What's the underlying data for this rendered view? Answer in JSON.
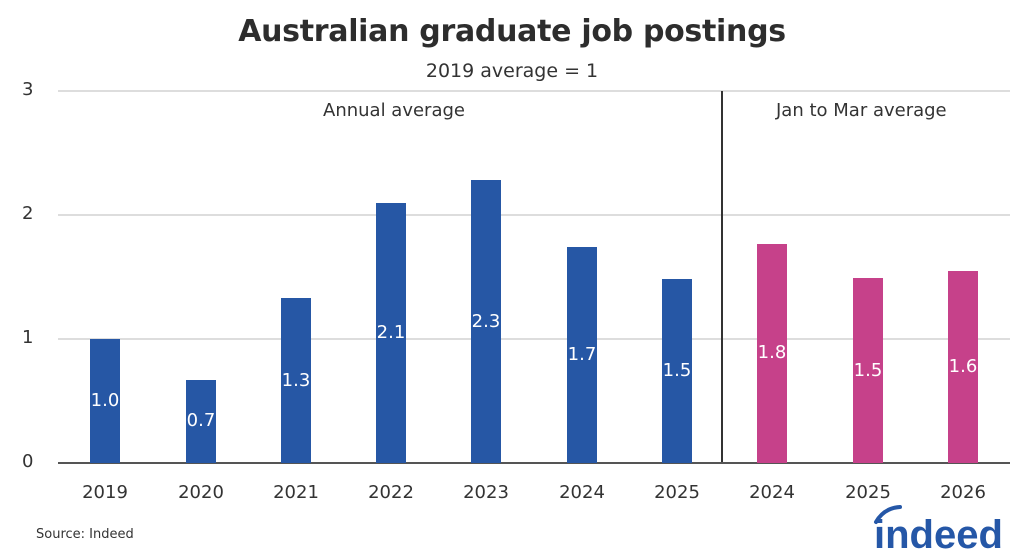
{
  "header": {
    "title": "Australian graduate job postings",
    "subtitle": "2019 average = 1"
  },
  "footer": {
    "source": "Source: Indeed",
    "logo_text": "indeed"
  },
  "colors": {
    "annual": "#2657a5",
    "jan_to_mar": "#c6418a",
    "grid": "#dddddd",
    "text": "#333333"
  },
  "chart_data": {
    "type": "bar",
    "title": "Australian graduate job postings",
    "subtitle": "2019 average = 1",
    "xlabel": "",
    "ylabel": "",
    "ylim": [
      0,
      3
    ],
    "yticks": [
      "0",
      "1",
      "2",
      "3"
    ],
    "grid": true,
    "annotations": [
      "Annual average",
      "Jan to Mar average"
    ],
    "categories": [
      "2019",
      "2020",
      "2021",
      "2022",
      "2023",
      "2024",
      "2025",
      "2024",
      "2025",
      "2026"
    ],
    "series": [
      {
        "name": "Annual average",
        "color": "#2657a5",
        "categories": [
          "2019",
          "2020",
          "2021",
          "2022",
          "2023",
          "2024",
          "2025"
        ],
        "values": [
          1.0,
          0.67,
          1.33,
          2.1,
          2.28,
          1.74,
          1.48
        ],
        "labels": [
          "1.0",
          "0.7",
          "1.3",
          "2.1",
          "2.3",
          "1.7",
          "1.5"
        ]
      },
      {
        "name": "Jan to Mar average",
        "color": "#c6418a",
        "categories": [
          "2024",
          "2025",
          "2026"
        ],
        "values": [
          1.77,
          1.49,
          1.55
        ],
        "labels": [
          "1.8",
          "1.5",
          "1.6"
        ]
      }
    ]
  }
}
